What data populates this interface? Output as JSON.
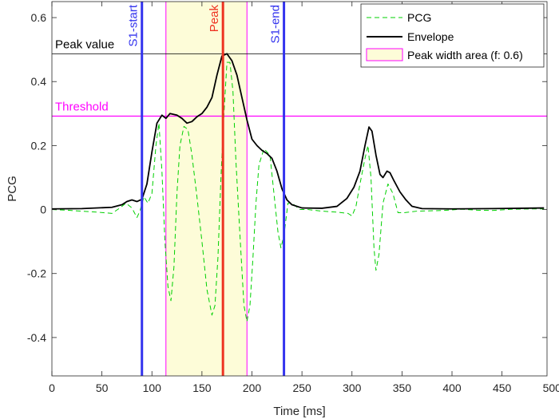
{
  "chart_data": {
    "type": "line",
    "title": "",
    "xlabel": "Time [ms]",
    "ylabel": "PCG",
    "xlim": [
      0,
      495
    ],
    "ylim": [
      -0.52,
      0.65
    ],
    "xticks": [
      0,
      50,
      100,
      150,
      200,
      250,
      300,
      350,
      400,
      450,
      500
    ],
    "yticks": [
      -0.4,
      -0.2,
      0,
      0.2,
      0.4,
      0.6
    ],
    "ytick_labels": [
      "-0.4",
      "-0.2",
      "0",
      "0.2",
      "0.4",
      "0.6"
    ],
    "grid": false,
    "legend": {
      "placement": "top-right",
      "entries": [
        "PCG",
        "Envelope",
        "Peak width area (f: 0.6)"
      ]
    },
    "colors": {
      "pcg": "#00d000",
      "envelope": "#000000",
      "peak_width_fill": "#fdfcd8",
      "peak_width_edge": "#ff00ff",
      "threshold": "#ff00ff",
      "peak_value_line": "#000000",
      "s1_lines": "#3333ee",
      "peak_line": "#ee3322"
    },
    "annotations": {
      "peak_value": {
        "label": "Peak value",
        "y": 0.487
      },
      "threshold": {
        "label": "Threshold",
        "y": 0.292
      },
      "s1_start": {
        "label": "S1-start",
        "x": 90
      },
      "peak": {
        "label": "Peak",
        "x": 171
      },
      "s1_end": {
        "label": "S1-end",
        "x": 232
      },
      "peak_width_area": {
        "x_start": 114,
        "x_end": 195
      }
    },
    "series": [
      {
        "name": "PCG",
        "style": "dashed",
        "points": [
          [
            0,
            0
          ],
          [
            15,
            -0.002
          ],
          [
            30,
            -0.005
          ],
          [
            45,
            -0.008
          ],
          [
            60,
            -0.012
          ],
          [
            68,
            0.005
          ],
          [
            74,
            0.02
          ],
          [
            80,
            0.005
          ],
          [
            85,
            -0.025
          ],
          [
            88,
            -0.005
          ],
          [
            92,
            0.04
          ],
          [
            96,
            0.02
          ],
          [
            100,
            0.05
          ],
          [
            104,
            0.2
          ],
          [
            107,
            0.27
          ],
          [
            110,
            0.12
          ],
          [
            113,
            -0.1
          ],
          [
            116,
            -0.24
          ],
          [
            119,
            -0.285
          ],
          [
            122,
            -0.18
          ],
          [
            125,
            0.05
          ],
          [
            128,
            0.2
          ],
          [
            132,
            0.26
          ],
          [
            136,
            0.25
          ],
          [
            140,
            0.17
          ],
          [
            145,
            0.04
          ],
          [
            150,
            -0.1
          ],
          [
            155,
            -0.25
          ],
          [
            160,
            -0.33
          ],
          [
            163,
            -0.3
          ],
          [
            166,
            -0.15
          ],
          [
            169,
            0.1
          ],
          [
            172,
            0.3
          ],
          [
            175,
            0.46
          ],
          [
            178,
            0.46
          ],
          [
            181,
            0.37
          ],
          [
            184,
            0.15
          ],
          [
            188,
            -0.08
          ],
          [
            192,
            -0.3
          ],
          [
            195,
            -0.35
          ],
          [
            198,
            -0.3
          ],
          [
            201,
            -0.15
          ],
          [
            204,
            0.02
          ],
          [
            207,
            0.14
          ],
          [
            212,
            0.19
          ],
          [
            218,
            0.17
          ],
          [
            222,
            0.05
          ],
          [
            226,
            -0.07
          ],
          [
            229,
            -0.12
          ],
          [
            232,
            -0.08
          ],
          [
            236,
            0.02
          ],
          [
            240,
            0.02
          ],
          [
            248,
            0
          ],
          [
            256,
            0
          ],
          [
            270,
            -0.005
          ],
          [
            285,
            -0.008
          ],
          [
            296,
            -0.012
          ],
          [
            300,
            -0.02
          ],
          [
            304,
            0.01
          ],
          [
            308,
            0.08
          ],
          [
            313,
            0.16
          ],
          [
            316,
            0.2
          ],
          [
            319,
            0.1
          ],
          [
            322,
            -0.12
          ],
          [
            324,
            -0.19
          ],
          [
            327,
            -0.14
          ],
          [
            331,
            0.02
          ],
          [
            336,
            0.08
          ],
          [
            341,
            0.05
          ],
          [
            346,
            -0.01
          ],
          [
            352,
            -0.01
          ],
          [
            365,
            -0.005
          ],
          [
            390,
            -0.003
          ],
          [
            410,
            0.001
          ],
          [
            425,
            -0.002
          ],
          [
            440,
            -0.003
          ],
          [
            460,
            0.001
          ],
          [
            480,
            0.002
          ],
          [
            492,
            0.002
          ]
        ]
      },
      {
        "name": "Envelope",
        "style": "solid",
        "points": [
          [
            0,
            0.002
          ],
          [
            30,
            0.003
          ],
          [
            60,
            0.007
          ],
          [
            70,
            0.015
          ],
          [
            75,
            0.025
          ],
          [
            80,
            0.03
          ],
          [
            85,
            0.025
          ],
          [
            90,
            0.032
          ],
          [
            95,
            0.08
          ],
          [
            100,
            0.18
          ],
          [
            105,
            0.27
          ],
          [
            110,
            0.295
          ],
          [
            114,
            0.285
          ],
          [
            118,
            0.3
          ],
          [
            125,
            0.295
          ],
          [
            130,
            0.285
          ],
          [
            135,
            0.27
          ],
          [
            140,
            0.275
          ],
          [
            145,
            0.29
          ],
          [
            150,
            0.3
          ],
          [
            155,
            0.32
          ],
          [
            160,
            0.35
          ],
          [
            165,
            0.42
          ],
          [
            170,
            0.48
          ],
          [
            175,
            0.487
          ],
          [
            180,
            0.465
          ],
          [
            185,
            0.42
          ],
          [
            190,
            0.35
          ],
          [
            195,
            0.28
          ],
          [
            200,
            0.22
          ],
          [
            205,
            0.2
          ],
          [
            210,
            0.185
          ],
          [
            215,
            0.175
          ],
          [
            220,
            0.16
          ],
          [
            225,
            0.12
          ],
          [
            230,
            0.065
          ],
          [
            235,
            0.03
          ],
          [
            240,
            0.015
          ],
          [
            250,
            0.005
          ],
          [
            270,
            0.004
          ],
          [
            285,
            0.01
          ],
          [
            295,
            0.035
          ],
          [
            302,
            0.07
          ],
          [
            308,
            0.12
          ],
          [
            313,
            0.2
          ],
          [
            317,
            0.258
          ],
          [
            320,
            0.245
          ],
          [
            324,
            0.17
          ],
          [
            328,
            0.11
          ],
          [
            331,
            0.1
          ],
          [
            335,
            0.12
          ],
          [
            338,
            0.115
          ],
          [
            342,
            0.09
          ],
          [
            348,
            0.055
          ],
          [
            354,
            0.03
          ],
          [
            360,
            0.01
          ],
          [
            370,
            0.003
          ],
          [
            400,
            0.002
          ],
          [
            440,
            0.003
          ],
          [
            470,
            0.004
          ],
          [
            492,
            0.005
          ]
        ]
      }
    ]
  }
}
